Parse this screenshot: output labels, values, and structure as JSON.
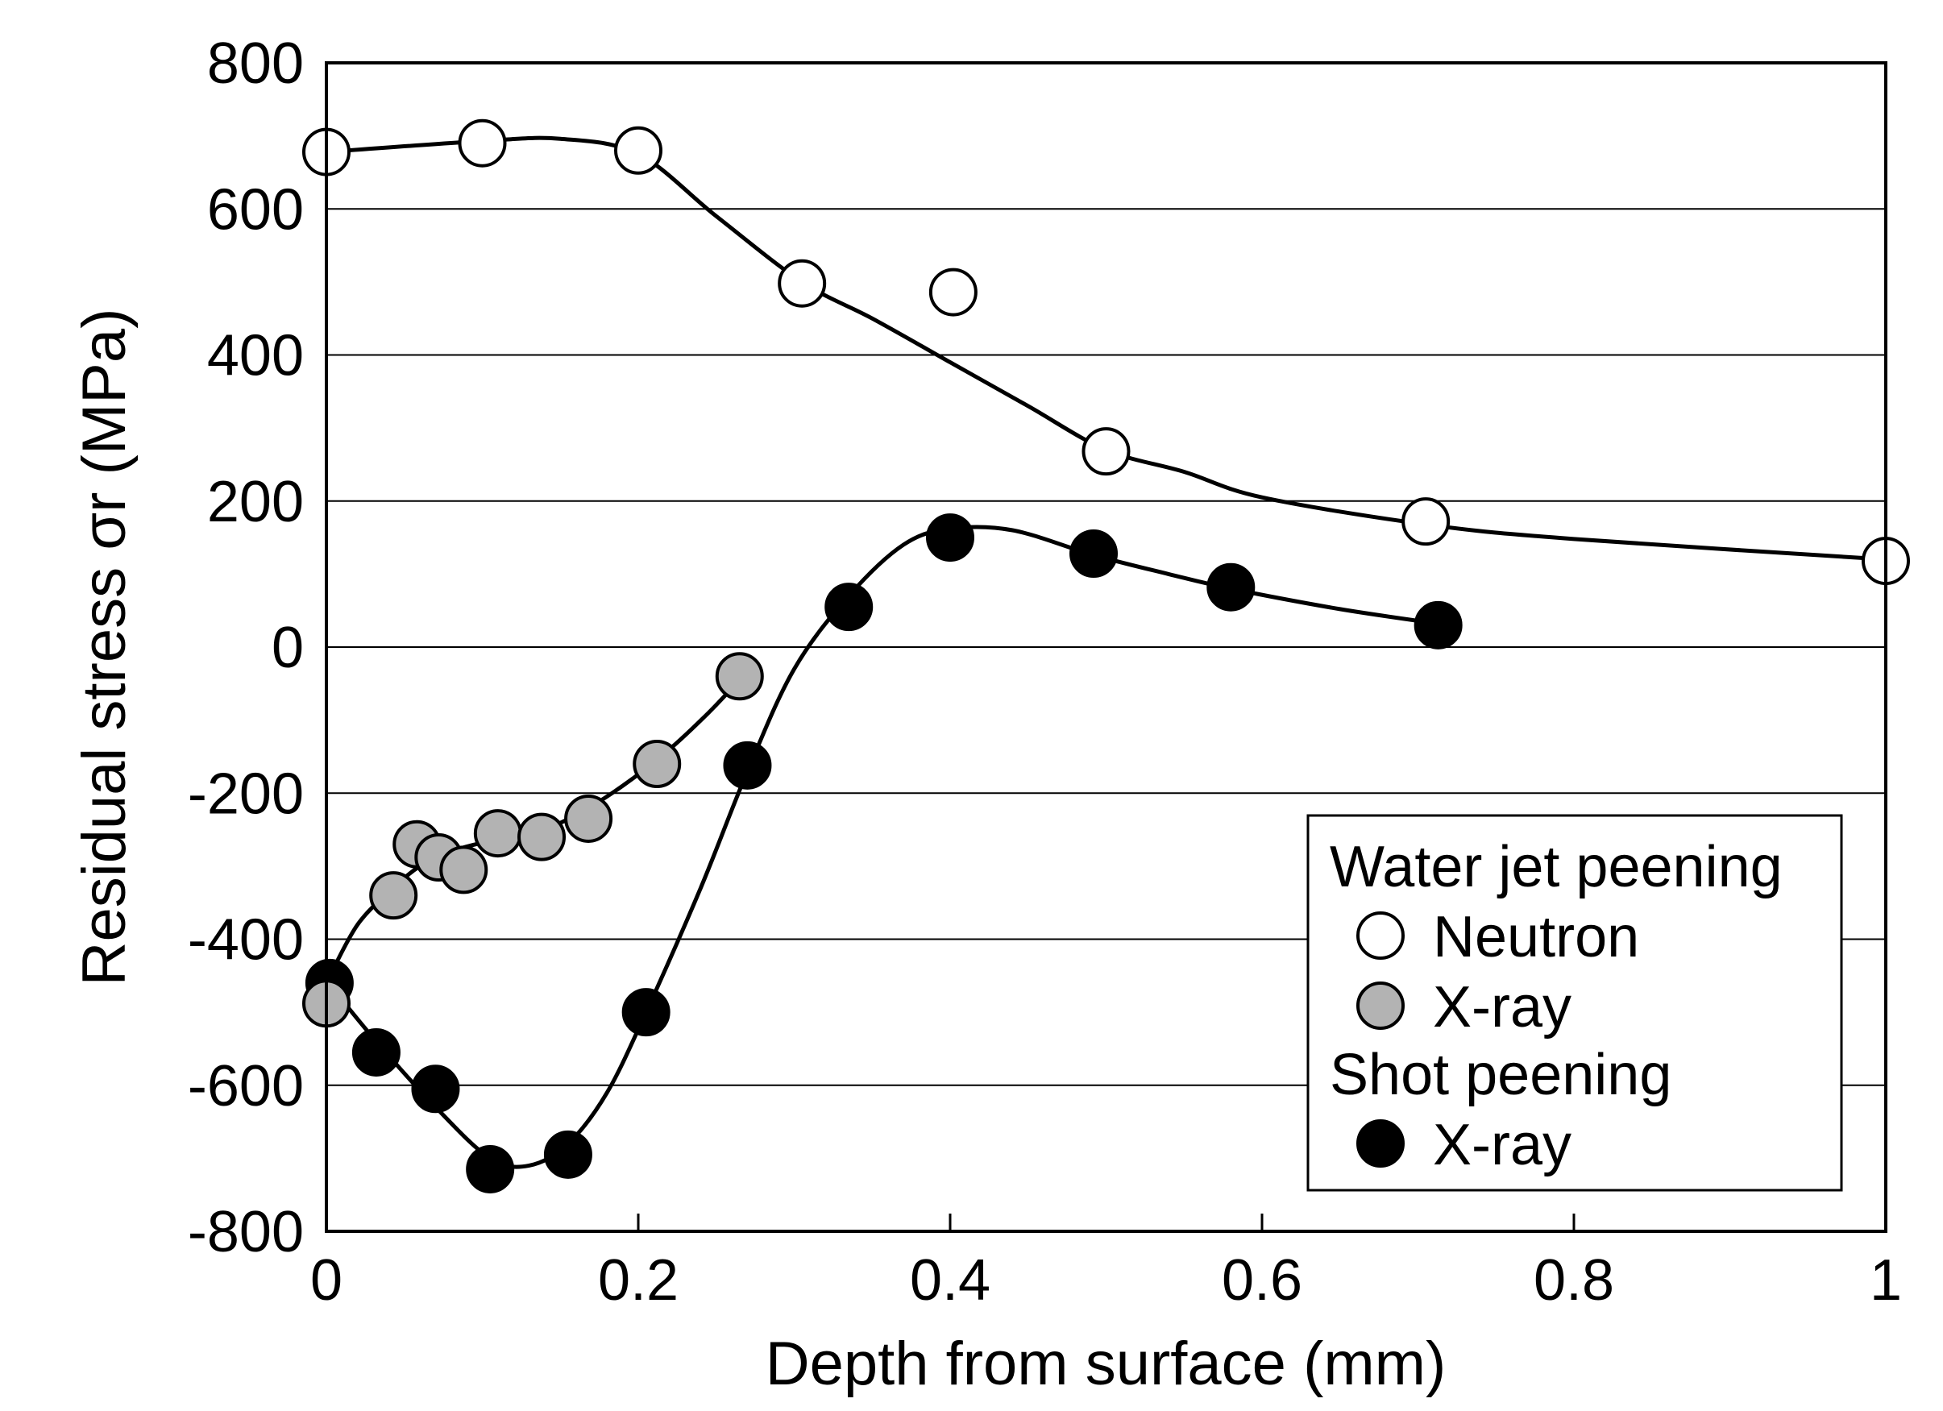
{
  "chart_data": {
    "type": "scatter",
    "xlabel": "Depth from surface (mm)",
    "ylabel": "Residual stress σr (MPa)",
    "xlim": [
      0,
      1
    ],
    "ylim": [
      -800,
      800
    ],
    "xticks": [
      "0",
      "0.2",
      "0.4",
      "0.6",
      "0.8",
      "1"
    ],
    "yticks": [
      "800",
      "600",
      "400",
      "200",
      "0",
      "-200",
      "-400",
      "-600",
      "-800"
    ],
    "grid": "horizontal",
    "legend": {
      "placement": "bottom-right",
      "groups": [
        {
          "title": "Water jet peening",
          "entries": [
            "Neutron",
            "X-ray"
          ]
        },
        {
          "title": "Shot peening",
          "entries": [
            "X-ray"
          ]
        }
      ]
    },
    "series": [
      {
        "name": "Neutron",
        "group": "Water jet peening",
        "marker": "open",
        "color": "#ffffff",
        "x": [
          0.0,
          0.1,
          0.2,
          0.305,
          0.402,
          0.5,
          0.705,
          1.0
        ],
        "y": [
          678,
          690,
          680,
          498,
          486,
          268,
          172,
          118
        ],
        "fit_x": [
          0.0,
          0.1,
          0.15,
          0.2,
          0.25,
          0.305,
          0.35,
          0.4,
          0.45,
          0.5,
          0.55,
          0.6,
          0.705,
          0.8,
          1.0
        ],
        "fit_y": [
          678,
          693,
          696,
          675,
          590,
          500,
          450,
          390,
          330,
          270,
          240,
          205,
          168,
          148,
          120
        ]
      },
      {
        "name": "X-ray",
        "group": "Water jet peening",
        "marker": "gray",
        "color": "#b3b3b3",
        "x": [
          0.0,
          0.043,
          0.058,
          0.072,
          0.088,
          0.11,
          0.138,
          0.168,
          0.212,
          0.265
        ],
        "y": [
          -488,
          -340,
          -270,
          -288,
          -305,
          -255,
          -260,
          -235,
          -160,
          -40
        ],
        "fit_x": [
          0.0,
          0.02,
          0.043,
          0.06,
          0.08,
          0.1,
          0.13,
          0.16,
          0.19,
          0.22,
          0.245,
          0.265
        ],
        "fit_y": [
          -460,
          -380,
          -330,
          -300,
          -280,
          -268,
          -258,
          -230,
          -190,
          -140,
          -90,
          -45
        ]
      },
      {
        "name": "X-ray",
        "group": "Shot peening",
        "marker": "filled",
        "color": "#000000",
        "x": [
          0.002,
          0.032,
          0.07,
          0.105,
          0.155,
          0.205,
          0.27,
          0.335,
          0.4,
          0.492,
          0.58,
          0.713
        ],
        "y": [
          -460,
          -555,
          -605,
          -715,
          -695,
          -500,
          -162,
          55,
          150,
          128,
          82,
          30
        ],
        "fit_x": [
          0.002,
          0.032,
          0.07,
          0.105,
          0.13,
          0.155,
          0.18,
          0.205,
          0.24,
          0.27,
          0.3,
          0.335,
          0.37,
          0.4,
          0.44,
          0.492,
          0.54,
          0.58,
          0.65,
          0.713
        ],
        "fit_y": [
          -462,
          -540,
          -630,
          -700,
          -710,
          -680,
          -610,
          -500,
          -330,
          -170,
          -30,
          70,
          140,
          162,
          160,
          126,
          100,
          80,
          52,
          32
        ]
      }
    ]
  }
}
